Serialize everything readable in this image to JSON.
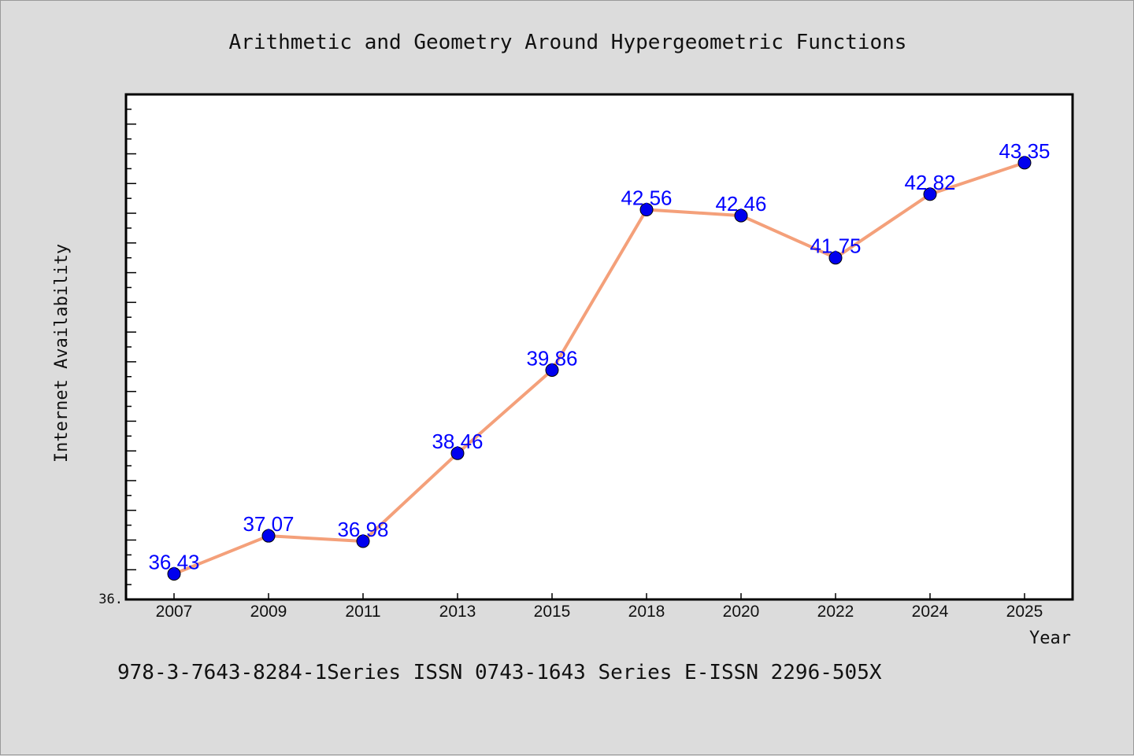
{
  "chart_data": {
    "type": "line",
    "title": "Arithmetic and Geometry Around Hypergeometric Functions",
    "xlabel": "Year",
    "ylabel": "Internet Availability",
    "categories": [
      "2007",
      "2009",
      "2011",
      "2013",
      "2015",
      "2018",
      "2020",
      "2022",
      "2024",
      "2025"
    ],
    "series": [
      {
        "values": [
          36.43,
          37.07,
          36.98,
          38.46,
          39.86,
          42.56,
          42.46,
          41.75,
          42.82,
          43.35
        ],
        "labels": [
          "36.43",
          "37.07",
          "36.98",
          "38.46",
          "39.86",
          "42.56",
          "42.46",
          "41.75",
          "42.82",
          "43.35"
        ]
      }
    ],
    "ylim": [
      36.0,
      44.5
    ],
    "y_tick_label": "36.",
    "grid": false,
    "colors": {
      "line": "#f4a07a",
      "marker": "#0000ee",
      "label": "#0000ff",
      "frame": "#000000",
      "background": "#dcdcdc",
      "plot_background": "#ffffff"
    }
  },
  "footer": {
    "text": "978-3-7643-8284-1Series ISSN 0743-1643 Series E-ISSN 2296-505X"
  }
}
